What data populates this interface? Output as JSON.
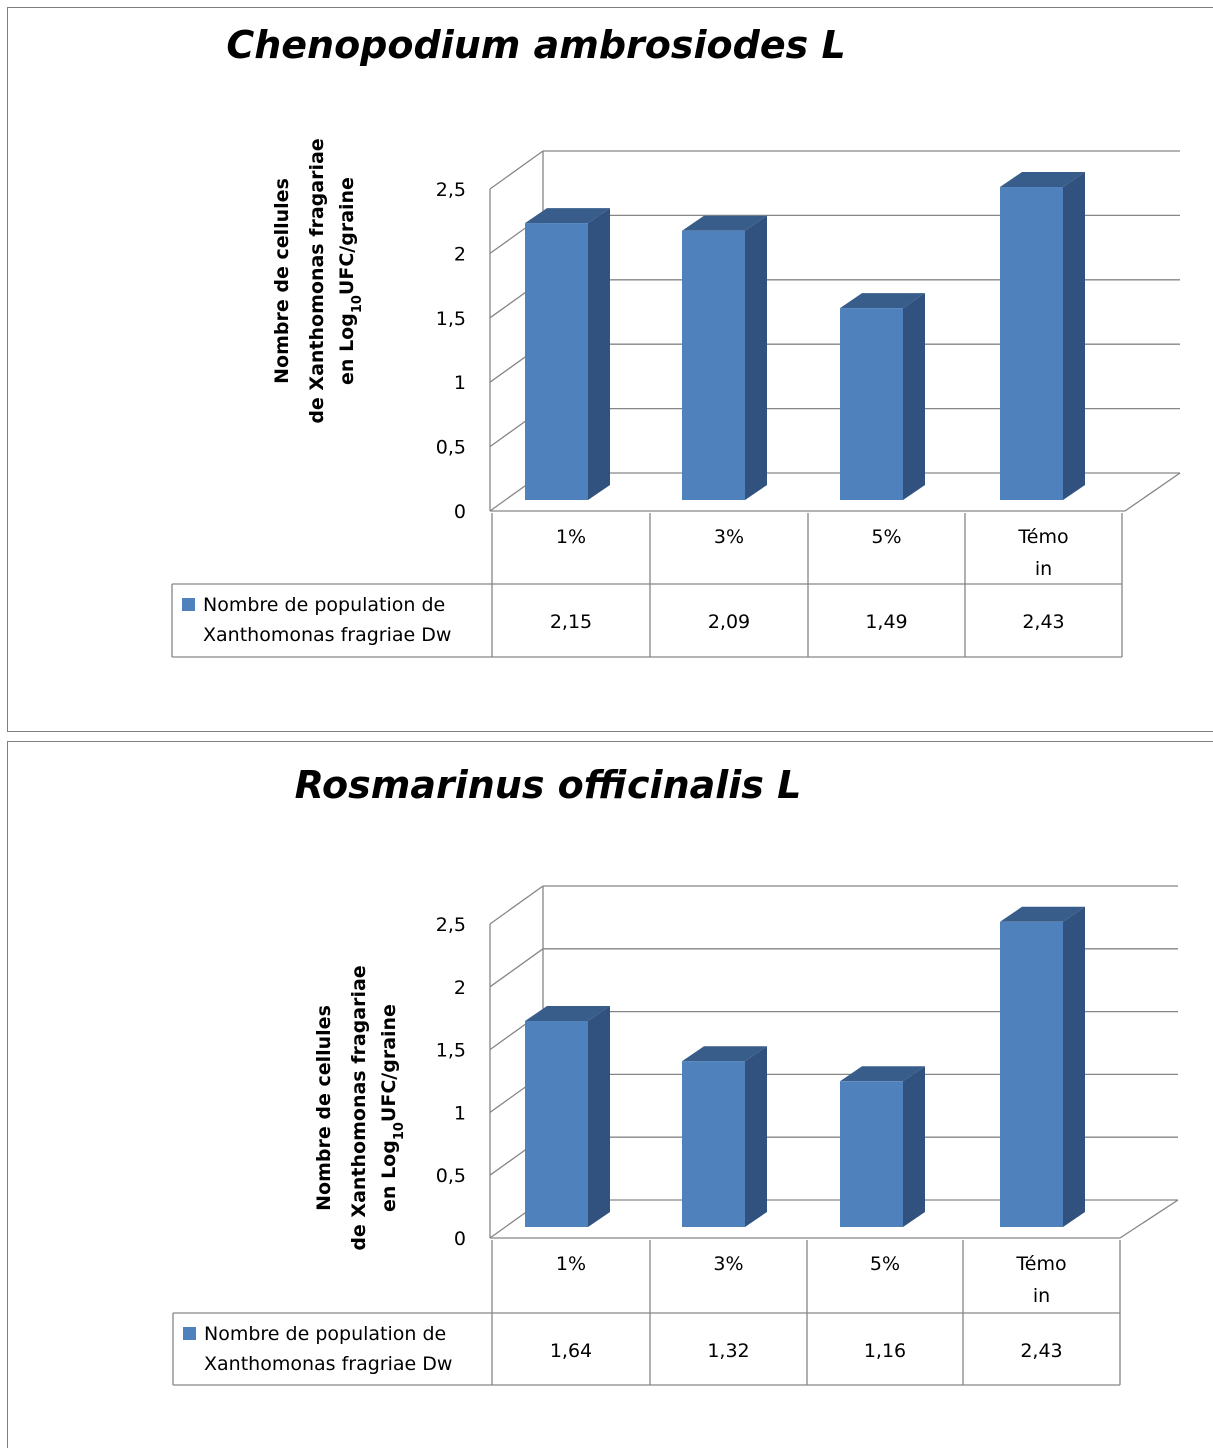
{
  "colors": {
    "bar_front": "#4f81bd",
    "bar_side": "#31527e",
    "bar_top": "#385d8a",
    "grid": "#868686",
    "table_border": "#868686"
  },
  "chart_data": [
    {
      "type": "bar",
      "title": "Chenopodium ambrosiodes L",
      "ylabel_lines": [
        "Nombre de cellules",
        "de Xanthomonas fragariae",
        "en Log",
        "10",
        "UFC/graine"
      ],
      "categories": [
        [
          "1%"
        ],
        [
          "3%"
        ],
        [
          "5%"
        ],
        [
          "Témo",
          "in"
        ]
      ],
      "ylim": [
        0,
        2.5
      ],
      "yticks": [
        "0",
        "0,5",
        "1",
        "1,5",
        "2",
        "2,5"
      ],
      "grid": true,
      "legend": "data table",
      "series": [
        {
          "name_lines": [
            "Nombre de population de",
            "Xanthomonas fragriae Dw"
          ],
          "values": [
            2.15,
            2.09,
            1.49,
            2.43
          ],
          "labels": [
            "2,15",
            "2,09",
            "1,49",
            "2,43"
          ]
        }
      ]
    },
    {
      "type": "bar",
      "title": "Rosmarinus officinalis L",
      "ylabel_lines": [
        "Nombre de cellules",
        "de Xanthomonas fragariae",
        "en Log",
        "10",
        "UFC/graine"
      ],
      "categories": [
        [
          "1%"
        ],
        [
          "3%"
        ],
        [
          "5%"
        ],
        [
          "Témo",
          "in"
        ]
      ],
      "ylim": [
        0,
        2.5
      ],
      "yticks": [
        "0",
        "0,5",
        "1",
        "1,5",
        "2",
        "2,5"
      ],
      "grid": true,
      "legend": "data table",
      "series": [
        {
          "name_lines": [
            "Nombre de population de",
            "Xanthomonas fragriae Dw"
          ],
          "values": [
            1.64,
            1.32,
            1.16,
            2.43
          ],
          "labels": [
            "1,64",
            "1,32",
            "1,16",
            "2,43"
          ]
        }
      ]
    }
  ]
}
